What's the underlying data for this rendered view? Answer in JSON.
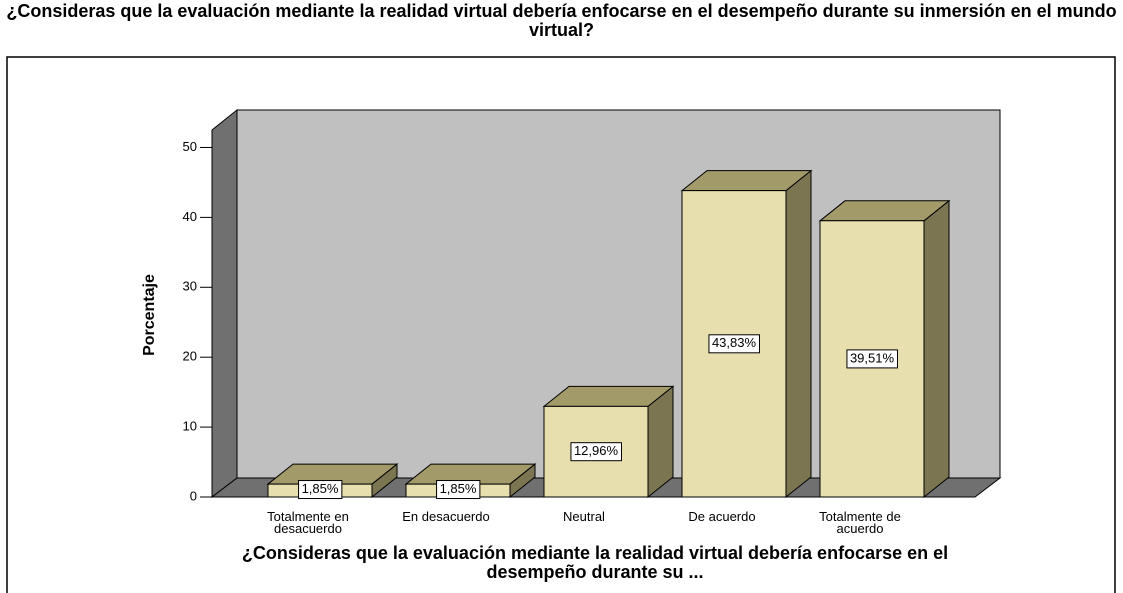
{
  "chart_data": {
    "type": "bar3d",
    "title": "¿Consideras que la evaluación mediante la realidad virtual debería enfocarse en el desempeño durante su inmersión en el mundo virtual?",
    "x_label": "¿Consideras que la evaluación mediante la realidad virtual debería enfocarse en el desempeño durante su ...",
    "y_label": "Porcentaje",
    "categories": [
      "Totalmente en desacuerdo",
      "En desacuerdo",
      "Neutral",
      "De acuerdo",
      "Totalmente de acuerdo"
    ],
    "values": [
      1.85,
      1.85,
      12.96,
      43.83,
      39.51
    ],
    "value_labels": [
      "1,85%",
      "1,85%",
      "12,96%",
      "43,83%",
      "39,51%"
    ],
    "color": "#e8dfae",
    "ylim": [
      0,
      52.5
    ],
    "yticks": [
      0,
      10,
      20,
      30,
      40,
      50
    ]
  }
}
